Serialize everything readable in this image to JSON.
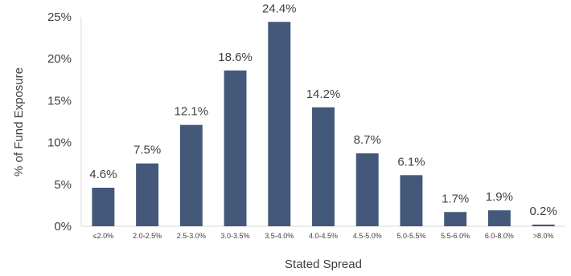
{
  "chart_data": {
    "type": "bar",
    "categories": [
      "≤2.0%",
      "2.0-2.5%",
      "2.5-3.0%",
      "3.0-3.5%",
      "3.5-4.0%",
      "4.0-4.5%",
      "4.5-5.0%",
      "5.0-5.5%",
      "5.5-6.0%",
      "6.0-8.0%",
      ">8.0%"
    ],
    "values": [
      4.6,
      7.5,
      12.1,
      18.6,
      24.4,
      14.2,
      8.7,
      6.1,
      1.7,
      1.9,
      0.2
    ],
    "data_labels": [
      "4.6%",
      "7.5%",
      "12.1%",
      "18.6%",
      "24.4%",
      "14.2%",
      "8.7%",
      "6.1%",
      "1.7%",
      "1.9%",
      "0.2%"
    ],
    "yticks": [
      0,
      5,
      10,
      15,
      20,
      25
    ],
    "ytick_labels": [
      "0%",
      "5%",
      "10%",
      "15%",
      "20%",
      "25%"
    ],
    "ylim": [
      0,
      25
    ],
    "xlabel": "Stated Spread",
    "ylabel": "% of Fund Exposure",
    "bar_color": "#44587a",
    "grid": false
  }
}
